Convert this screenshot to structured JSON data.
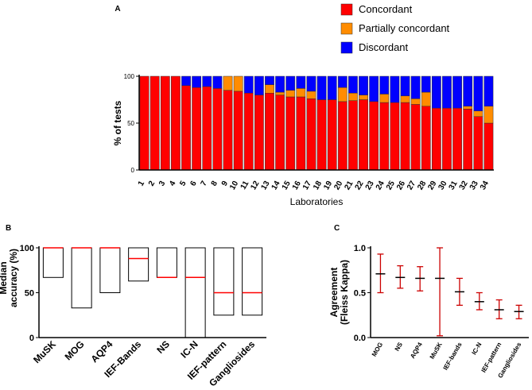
{
  "chart_data": [
    {
      "panel": "A",
      "type": "bar",
      "stacked": true,
      "xlabel": "Laboratories",
      "ylabel": "% of tests",
      "ylim": [
        0,
        100
      ],
      "yticks": [
        0,
        50,
        100
      ],
      "legend_position": "top-right",
      "categories": [
        "1",
        "2",
        "3",
        "4",
        "5",
        "6",
        "7",
        "8",
        "9",
        "10",
        "11",
        "12",
        "13",
        "14",
        "15",
        "16",
        "17",
        "18",
        "19",
        "20",
        "21",
        "22",
        "23",
        "24",
        "25",
        "26",
        "27",
        "28",
        "29",
        "30",
        "31",
        "32",
        "33",
        "34"
      ],
      "series": [
        {
          "name": "Concordant",
          "color": "#ff0000",
          "values": [
            100,
            100,
            100,
            100,
            90,
            88,
            89,
            87,
            85,
            84,
            82,
            80,
            82,
            80,
            78,
            78,
            76,
            75,
            75,
            73,
            74,
            75,
            73,
            72,
            72,
            72,
            70,
            68,
            66,
            66,
            66,
            65,
            57,
            50
          ]
        },
        {
          "name": "Partially concordant",
          "color": "#ff8c00",
          "values": [
            0,
            0,
            0,
            0,
            0,
            0,
            0,
            0,
            15,
            16,
            0,
            0,
            9,
            3,
            7,
            9,
            8,
            0,
            0,
            15,
            8,
            5,
            0,
            9,
            0,
            7,
            6,
            15,
            0,
            0,
            0,
            3,
            6,
            18
          ]
        },
        {
          "name": "Discordant",
          "color": "#0000ff",
          "values": [
            0,
            0,
            0,
            0,
            10,
            12,
            11,
            13,
            0,
            0,
            18,
            20,
            9,
            17,
            15,
            13,
            16,
            25,
            25,
            12,
            18,
            20,
            27,
            19,
            28,
            21,
            24,
            17,
            34,
            34,
            34,
            32,
            37,
            32
          ]
        }
      ]
    },
    {
      "panel": "B",
      "type": "floating-bar",
      "ylabel": "Median accuracy (%)",
      "ylim": [
        0,
        100
      ],
      "yticks": [
        0,
        50,
        100
      ],
      "categories": [
        "MuSK",
        "MOG",
        "AQP4",
        "IEF-Bands",
        "NS",
        "IC-N",
        "IEF-pattern",
        "Gangliosides"
      ],
      "lows": [
        67,
        33,
        50,
        63,
        67,
        0,
        25,
        25
      ],
      "highs": [
        100,
        100,
        100,
        100,
        100,
        100,
        100,
        100
      ],
      "medians": [
        100,
        100,
        100,
        88,
        67,
        67,
        50,
        50
      ],
      "median_color": "#ff0000"
    },
    {
      "panel": "C",
      "type": "error-bar",
      "ylabel": "Agreement (Fleiss Kappa)",
      "ylim": [
        0,
        1
      ],
      "yticks": [
        "0.0",
        "0.5",
        "1.0"
      ],
      "categories": [
        "MOG",
        "NS",
        "AQP4",
        "MuSK",
        "IEF-bands",
        "IC-N",
        "IEF-pattern",
        "Gangliosides"
      ],
      "center": [
        0.71,
        0.67,
        0.66,
        0.66,
        0.51,
        0.4,
        0.31,
        0.29
      ],
      "lower": [
        0.5,
        0.55,
        0.52,
        0.02,
        0.36,
        0.31,
        0.21,
        0.21
      ],
      "upper": [
        0.93,
        0.8,
        0.79,
        1.0,
        0.66,
        0.5,
        0.42,
        0.36
      ],
      "bar_color": "#cc0000"
    }
  ]
}
